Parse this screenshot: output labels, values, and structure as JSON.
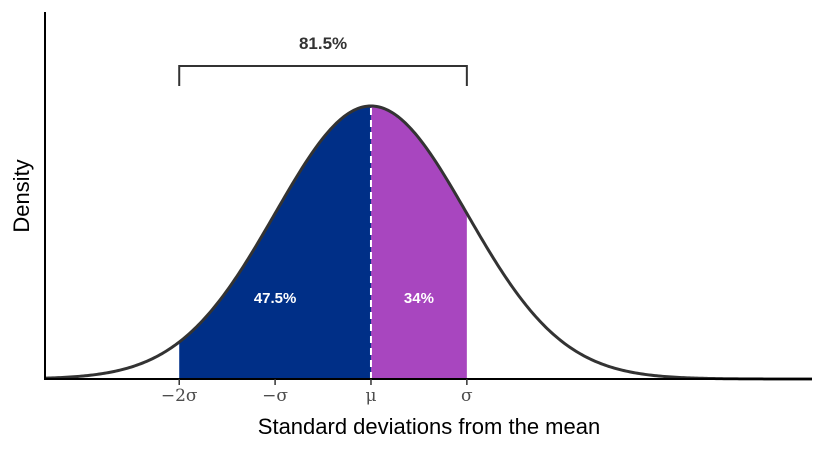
{
  "chart_data": {
    "type": "area",
    "title": "",
    "xlabel": "Standard deviations from the mean",
    "ylabel": "Density",
    "distribution": "normal",
    "xlim": [
      -3.4,
      4.6
    ],
    "ylim": [
      0,
      0.4
    ],
    "grid": false,
    "x_ticks": [
      {
        "x": -2,
        "label": "−2σ"
      },
      {
        "x": -1,
        "label": "−σ"
      },
      {
        "x": 0,
        "label": "μ"
      },
      {
        "x": 1,
        "label": "σ"
      }
    ],
    "regions": [
      {
        "from": -2,
        "to": 0,
        "label": "47.5%",
        "color": "#002f87"
      },
      {
        "from": 0,
        "to": 1,
        "label": "34%",
        "color": "#a846bf"
      }
    ],
    "mean_line": {
      "x": 0,
      "style": "dashed",
      "color": "#ffffff"
    },
    "bracket": {
      "from": -2,
      "to": 1,
      "label": "81.5%"
    },
    "curve_color": "#333333"
  }
}
